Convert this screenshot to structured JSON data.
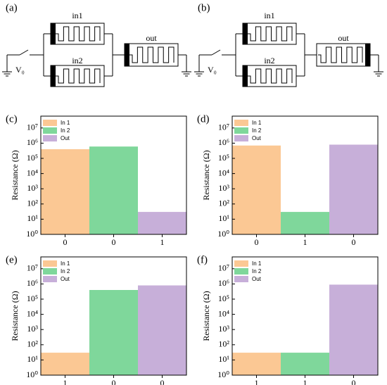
{
  "circuits": [
    {
      "label": "(a)",
      "in1": "in1",
      "in2": "in2",
      "out": "out",
      "source": "V₀"
    },
    {
      "label": "(b)",
      "in1": "in1",
      "in2": "in2",
      "out": "out",
      "source": "V₀"
    }
  ],
  "chart_data": [
    {
      "type": "bar",
      "label": "(c)",
      "ylabel": "Resistance (Ω)",
      "categories": [
        "0",
        "0",
        "1"
      ],
      "series": [
        {
          "name": "In 1",
          "color": "#fbc894",
          "values": [
            400000,
            null,
            null
          ]
        },
        {
          "name": "In 2",
          "color": "#7fd79b",
          "values": [
            null,
            600000,
            null
          ]
        },
        {
          "name": "Out",
          "color": "#c7afd9",
          "values": [
            null,
            null,
            30
          ]
        }
      ],
      "log_scale": true,
      "legend": "top-left",
      "ylim": [
        1,
        60000000
      ],
      "yticks": [
        {
          "value": 1,
          "label": "10⁰"
        },
        {
          "value": 10,
          "label": "10¹"
        },
        {
          "value": 100,
          "label": "10²"
        },
        {
          "value": 1000,
          "label": "10³"
        },
        {
          "value": 10000,
          "label": "10⁴"
        },
        {
          "value": 100000,
          "label": "10⁵"
        },
        {
          "value": 1000000,
          "label": "10⁶"
        },
        {
          "value": 10000000,
          "label": "10⁷"
        }
      ]
    },
    {
      "type": "bar",
      "label": "(d)",
      "ylabel": "Resistance (Ω)",
      "categories": [
        "0",
        "1",
        "0"
      ],
      "series": [
        {
          "name": "In 1",
          "color": "#fbc894",
          "values": [
            700000,
            null,
            null
          ]
        },
        {
          "name": "In 2",
          "color": "#7fd79b",
          "values": [
            null,
            30,
            null
          ]
        },
        {
          "name": "Out",
          "color": "#c7afd9",
          "values": [
            null,
            null,
            800000
          ]
        }
      ],
      "log_scale": true,
      "legend": "top-left",
      "ylim": [
        1,
        60000000
      ],
      "yticks": [
        {
          "value": 1,
          "label": "10⁰"
        },
        {
          "value": 10,
          "label": "10¹"
        },
        {
          "value": 100,
          "label": "10²"
        },
        {
          "value": 1000,
          "label": "10³"
        },
        {
          "value": 10000,
          "label": "10⁴"
        },
        {
          "value": 100000,
          "label": "10⁵"
        },
        {
          "value": 1000000,
          "label": "10⁶"
        },
        {
          "value": 10000000,
          "label": "10⁷"
        }
      ]
    },
    {
      "type": "bar",
      "label": "(e)",
      "ylabel": "Resistance (Ω)",
      "categories": [
        "1",
        "0",
        "0"
      ],
      "series": [
        {
          "name": "In 1",
          "color": "#fbc894",
          "values": [
            30,
            null,
            null
          ]
        },
        {
          "name": "In 2",
          "color": "#7fd79b",
          "values": [
            null,
            400000,
            null
          ]
        },
        {
          "name": "Out",
          "color": "#c7afd9",
          "values": [
            null,
            null,
            800000
          ]
        }
      ],
      "log_scale": true,
      "legend": "top-left",
      "ylim": [
        1,
        60000000
      ],
      "yticks": [
        {
          "value": 1,
          "label": "10⁰"
        },
        {
          "value": 10,
          "label": "10¹"
        },
        {
          "value": 100,
          "label": "10²"
        },
        {
          "value": 1000,
          "label": "10³"
        },
        {
          "value": 10000,
          "label": "10⁴"
        },
        {
          "value": 100000,
          "label": "10⁵"
        },
        {
          "value": 1000000,
          "label": "10⁶"
        },
        {
          "value": 10000000,
          "label": "10⁷"
        }
      ]
    },
    {
      "type": "bar",
      "label": "(f)",
      "ylabel": "Resistance (Ω)",
      "categories": [
        "1",
        "1",
        "0"
      ],
      "series": [
        {
          "name": "In 1",
          "color": "#fbc894",
          "values": [
            30,
            null,
            null
          ]
        },
        {
          "name": "In 2",
          "color": "#7fd79b",
          "values": [
            null,
            30,
            null
          ]
        },
        {
          "name": "Out",
          "color": "#c7afd9",
          "values": [
            null,
            null,
            900000
          ]
        }
      ],
      "log_scale": true,
      "legend": "top-left",
      "ylim": [
        1,
        60000000
      ],
      "yticks": [
        {
          "value": 1,
          "label": "10⁰"
        },
        {
          "value": 10,
          "label": "10¹"
        },
        {
          "value": 100,
          "label": "10²"
        },
        {
          "value": 1000,
          "label": "10³"
        },
        {
          "value": 10000,
          "label": "10⁴"
        },
        {
          "value": 100000,
          "label": "10⁵"
        },
        {
          "value": 1000000,
          "label": "10⁶"
        },
        {
          "value": 10000000,
          "label": "10⁷"
        }
      ]
    }
  ]
}
